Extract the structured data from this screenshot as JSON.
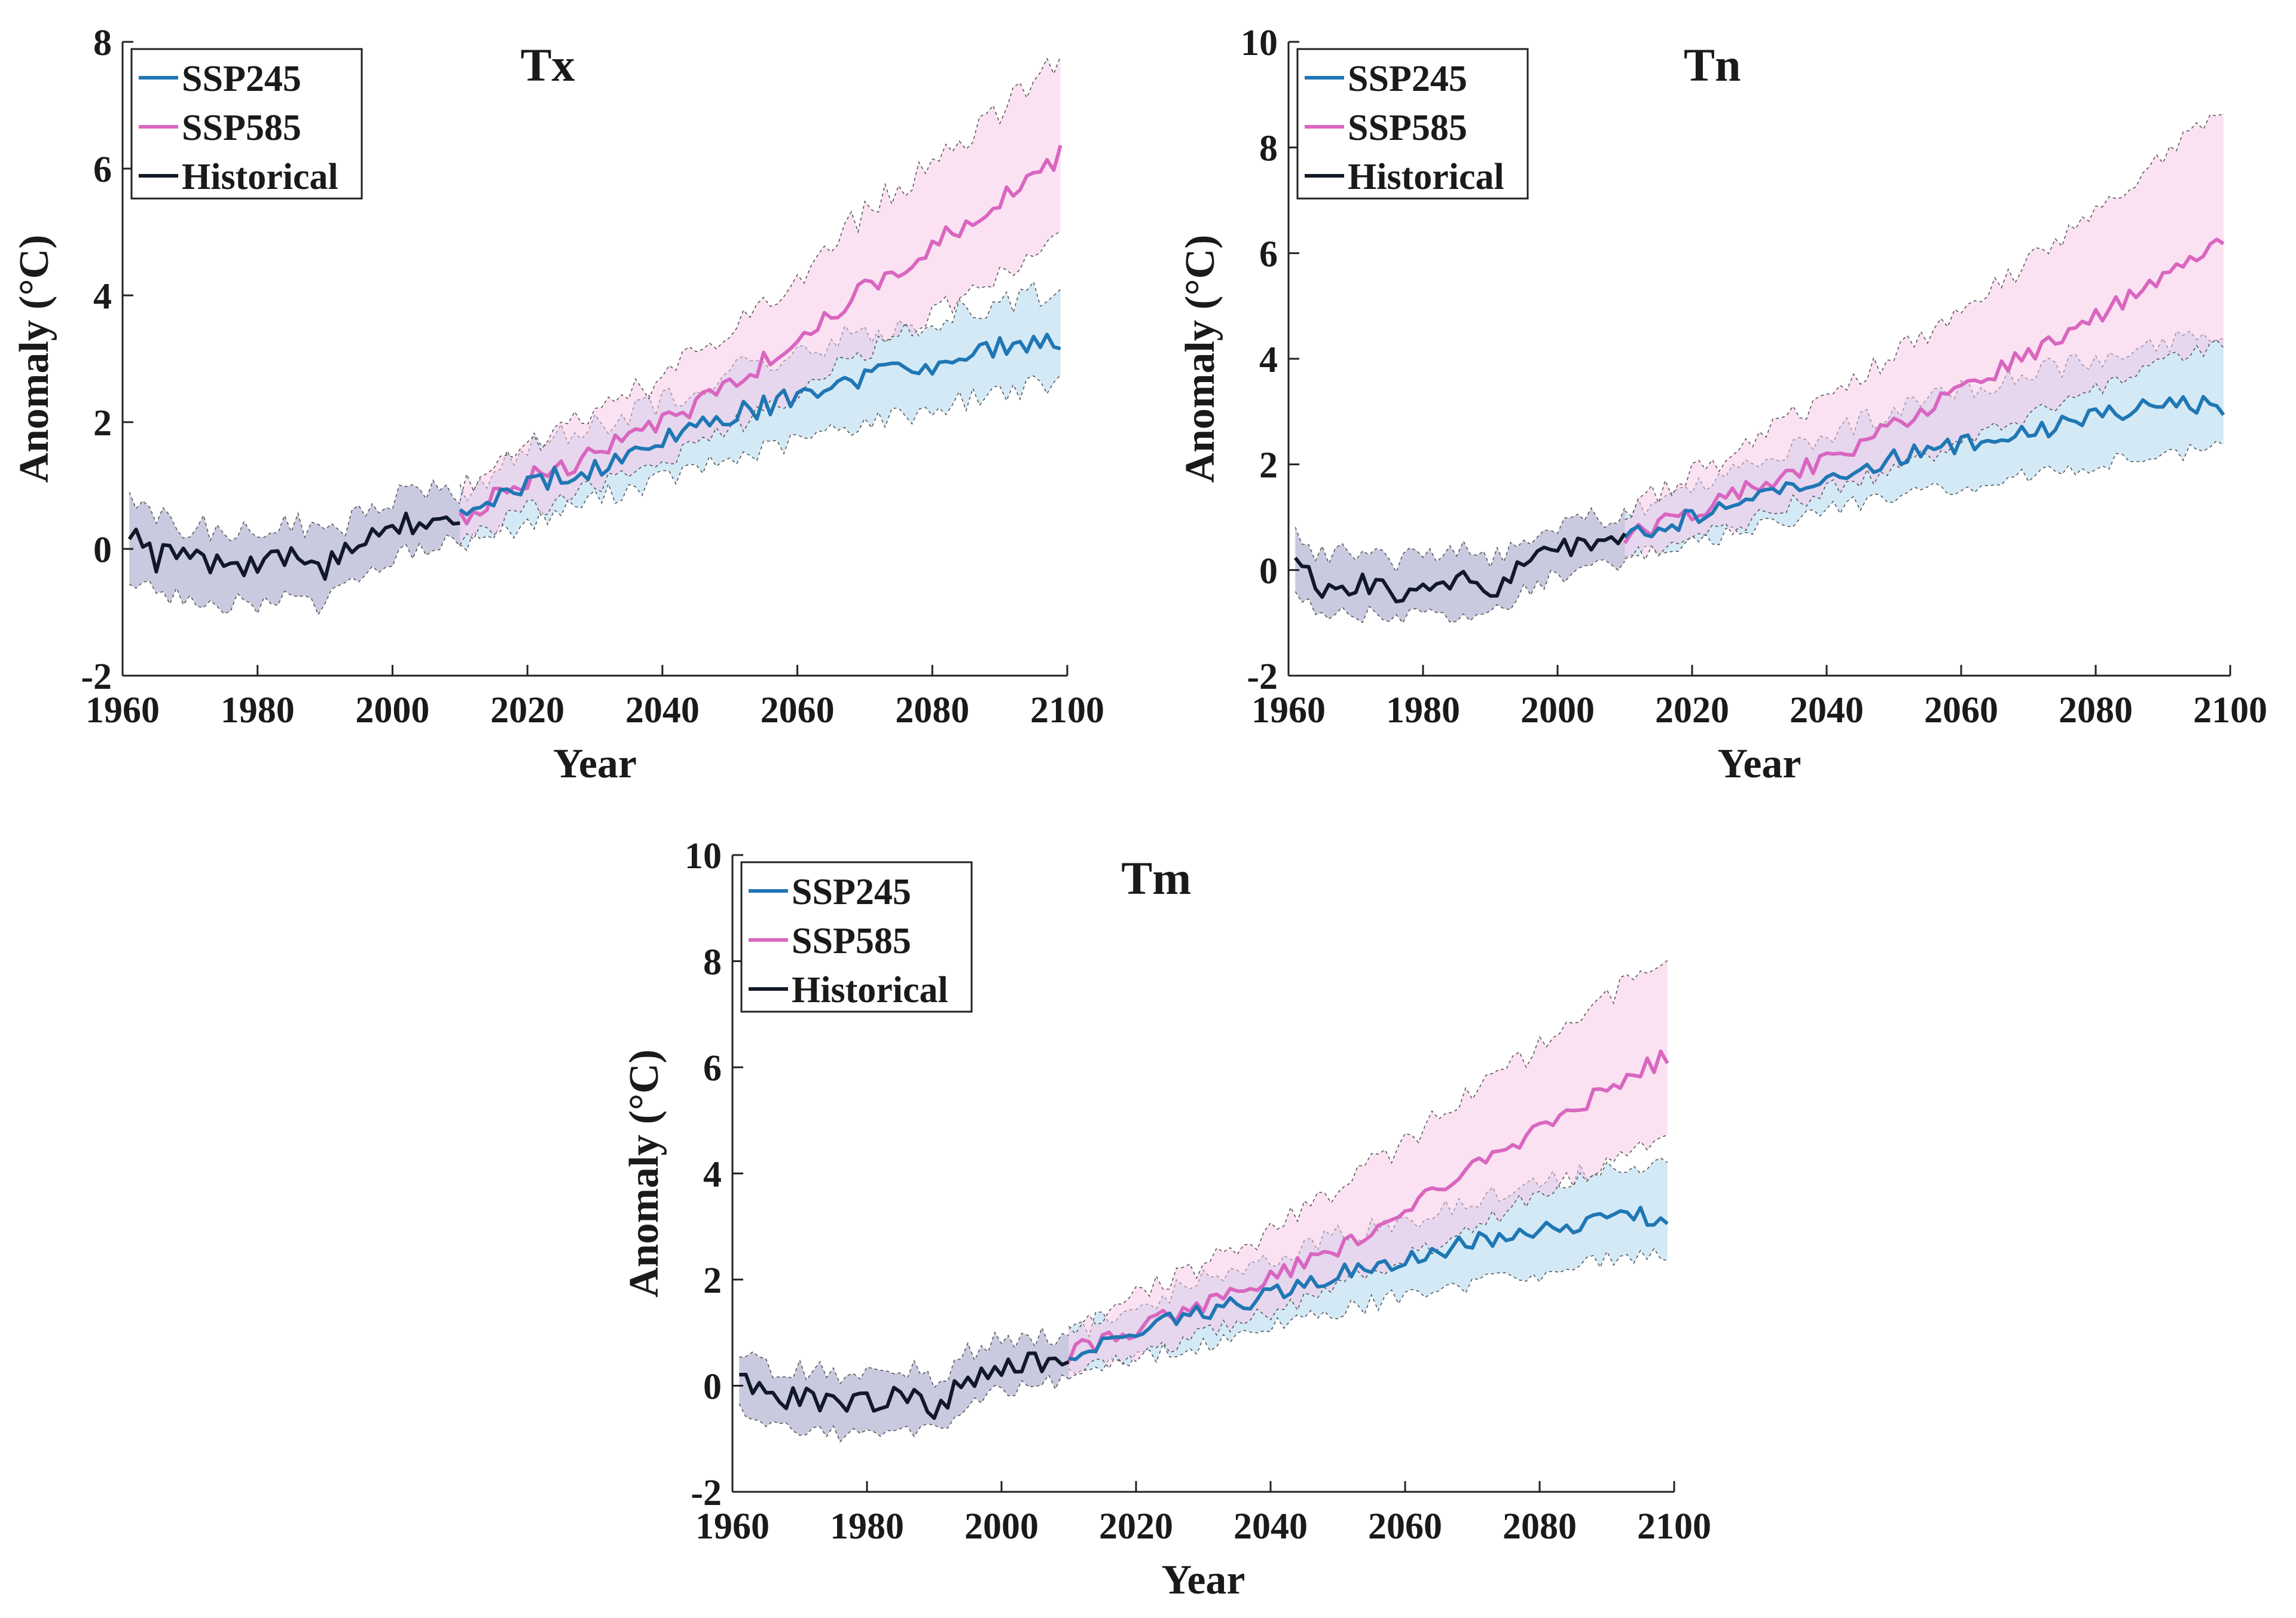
{
  "chart_data": [
    {
      "type": "line",
      "title": "Tx",
      "xlabel": "Year",
      "ylabel": "Anomaly (°C)",
      "xlim": [
        1960,
        2100
      ],
      "ylim": [
        -2,
        8
      ],
      "xticks": [
        "1960",
        "1980",
        "2000",
        "2020",
        "2040",
        "2060",
        "2080",
        "2100"
      ],
      "yticks": [
        "-2",
        "0",
        "2",
        "4",
        "6",
        "8"
      ],
      "legend": [
        "SSP245",
        "SSP585",
        "Historical"
      ],
      "legend_position": "top-left",
      "series": [
        {
          "name": "Historical",
          "x": [
            1961,
            1965,
            1970,
            1975,
            1980,
            1985,
            1990,
            1995,
            2000,
            2005,
            2010
          ],
          "values": [
            0.35,
            -0.15,
            -0.2,
            -0.3,
            -0.3,
            -0.15,
            -0.35,
            0.1,
            0.35,
            0.45,
            0.5
          ],
          "band_low": [
            -0.45,
            -0.7,
            -0.75,
            -0.85,
            -0.9,
            -0.75,
            -0.9,
            -0.35,
            -0.1,
            0.0,
            0.1
          ],
          "band_high": [
            0.8,
            0.45,
            0.35,
            0.25,
            0.25,
            0.4,
            0.2,
            0.55,
            0.8,
            0.9,
            0.9
          ]
        },
        {
          "name": "SSP245",
          "x": [
            2010,
            2020,
            2030,
            2040,
            2050,
            2060,
            2070,
            2080,
            2090,
            2099
          ],
          "values": [
            0.5,
            1.0,
            1.3,
            1.7,
            2.1,
            2.4,
            2.7,
            2.9,
            3.2,
            3.3
          ],
          "band_low": [
            0.1,
            0.4,
            0.8,
            1.1,
            1.4,
            1.7,
            2.0,
            2.2,
            2.5,
            2.6
          ],
          "band_high": [
            0.9,
            1.6,
            1.9,
            2.3,
            2.8,
            3.1,
            3.4,
            3.6,
            3.9,
            4.1
          ]
        },
        {
          "name": "SSP585",
          "x": [
            2010,
            2020,
            2030,
            2040,
            2050,
            2060,
            2070,
            2080,
            2090,
            2099
          ],
          "values": [
            0.5,
            1.1,
            1.5,
            2.0,
            2.6,
            3.3,
            4.1,
            4.8,
            5.5,
            6.2
          ],
          "band_low": [
            0.1,
            0.6,
            1.0,
            1.4,
            1.9,
            2.5,
            3.1,
            3.7,
            4.3,
            4.9
          ],
          "band_high": [
            0.9,
            1.7,
            2.1,
            2.7,
            3.5,
            4.3,
            5.3,
            6.1,
            6.9,
            7.8
          ]
        }
      ]
    },
    {
      "type": "line",
      "title": "Tn",
      "xlabel": "Year",
      "ylabel": "Anomaly (°C)",
      "xlim": [
        1960,
        2100
      ],
      "ylim": [
        -2,
        10
      ],
      "xticks": [
        "1960",
        "1980",
        "2000",
        "2020",
        "2040",
        "2060",
        "2080",
        "2100"
      ],
      "yticks": [
        "-2",
        "0",
        "2",
        "4",
        "6",
        "8",
        "10"
      ],
      "legend": [
        "SSP245",
        "SSP585",
        "Historical"
      ],
      "legend_position": "top-left",
      "series": [
        {
          "name": "Historical",
          "x": [
            1961,
            1965,
            1970,
            1975,
            1980,
            1985,
            1990,
            1995,
            2000,
            2005,
            2010
          ],
          "values": [
            0.2,
            -0.3,
            -0.25,
            -0.4,
            -0.3,
            -0.2,
            -0.4,
            0.1,
            0.4,
            0.5,
            0.55
          ],
          "band_low": [
            -0.5,
            -0.8,
            -0.8,
            -0.9,
            -0.9,
            -0.8,
            -0.9,
            -0.4,
            -0.1,
            0.0,
            0.15
          ],
          "band_high": [
            0.6,
            0.3,
            0.3,
            0.15,
            0.25,
            0.4,
            0.1,
            0.6,
            0.9,
            1.0,
            1.0
          ]
        },
        {
          "name": "SSP245",
          "x": [
            2010,
            2020,
            2030,
            2040,
            2050,
            2060,
            2070,
            2080,
            2090,
            2099
          ],
          "values": [
            0.6,
            1.0,
            1.4,
            1.7,
            2.1,
            2.4,
            2.6,
            2.9,
            3.2,
            3.1
          ],
          "band_low": [
            0.2,
            0.5,
            0.8,
            1.1,
            1.4,
            1.6,
            1.8,
            2.0,
            2.2,
            2.3
          ],
          "band_high": [
            1.1,
            1.6,
            2.1,
            2.6,
            3.0,
            3.4,
            3.7,
            4.0,
            4.3,
            4.4
          ]
        },
        {
          "name": "SSP585",
          "x": [
            2010,
            2020,
            2030,
            2040,
            2050,
            2060,
            2070,
            2080,
            2090,
            2099
          ],
          "values": [
            0.6,
            1.1,
            1.6,
            2.1,
            2.7,
            3.4,
            4.1,
            4.8,
            5.5,
            6.2
          ],
          "band_low": [
            0.2,
            0.6,
            1.0,
            1.5,
            1.9,
            2.4,
            2.9,
            3.4,
            3.9,
            4.3
          ],
          "band_high": [
            1.1,
            1.8,
            2.5,
            3.3,
            4.1,
            4.9,
            5.8,
            6.7,
            7.8,
            8.8
          ]
        }
      ]
    },
    {
      "type": "line",
      "title": "Tm",
      "xlabel": "Year",
      "ylabel": "Anomaly (°C)",
      "xlim": [
        1960,
        2100
      ],
      "ylim": [
        -2,
        10
      ],
      "xticks": [
        "1960",
        "1980",
        "2000",
        "2020",
        "2040",
        "2060",
        "2080",
        "2100"
      ],
      "yticks": [
        "-2",
        "0",
        "2",
        "4",
        "6",
        "8",
        "10"
      ],
      "legend": [
        "SSP245",
        "SSP585",
        "Historical"
      ],
      "legend_position": "top-left",
      "series": [
        {
          "name": "Historical",
          "x": [
            1961,
            1965,
            1970,
            1975,
            1980,
            1985,
            1990,
            1995,
            2000,
            2005,
            2010
          ],
          "values": [
            0.3,
            -0.2,
            -0.25,
            -0.35,
            -0.35,
            -0.15,
            -0.4,
            0.1,
            0.4,
            0.45,
            0.55
          ],
          "band_low": [
            -0.5,
            -0.8,
            -0.8,
            -0.9,
            -1.0,
            -0.8,
            -0.9,
            -0.4,
            -0.1,
            0.0,
            0.15
          ],
          "band_high": [
            0.7,
            0.3,
            0.3,
            0.2,
            0.2,
            0.4,
            0.1,
            0.6,
            0.85,
            0.95,
            1.0
          ]
        },
        {
          "name": "SSP245",
          "x": [
            2010,
            2020,
            2030,
            2040,
            2050,
            2060,
            2070,
            2080,
            2090,
            2099
          ],
          "values": [
            0.6,
            1.0,
            1.4,
            1.7,
            2.1,
            2.4,
            2.7,
            2.9,
            3.2,
            3.2
          ],
          "band_low": [
            0.2,
            0.5,
            0.8,
            1.1,
            1.4,
            1.7,
            1.9,
            2.1,
            2.4,
            2.5
          ],
          "band_high": [
            1.0,
            1.5,
            2.0,
            2.4,
            2.8,
            3.1,
            3.5,
            3.8,
            4.1,
            4.2
          ]
        },
        {
          "name": "SSP585",
          "x": [
            2010,
            2020,
            2030,
            2040,
            2050,
            2060,
            2070,
            2080,
            2090,
            2099
          ],
          "values": [
            0.6,
            1.1,
            1.5,
            2.0,
            2.6,
            3.3,
            4.1,
            4.8,
            5.6,
            6.2
          ],
          "band_low": [
            0.2,
            0.6,
            1.0,
            1.4,
            1.9,
            2.4,
            3.0,
            3.6,
            4.2,
            4.8
          ],
          "band_high": [
            1.0,
            1.7,
            2.3,
            2.9,
            3.7,
            4.6,
            5.5,
            6.4,
            7.3,
            8.2
          ]
        }
      ]
    }
  ],
  "colors": {
    "SSP245": "#1f77b4",
    "SSP585": "#d966c0",
    "Historical": "#111827",
    "SSP245_band": "#a9d3ee",
    "SSP585_band": "#f7c6e6",
    "Historical_band": "#9c9cc4"
  }
}
